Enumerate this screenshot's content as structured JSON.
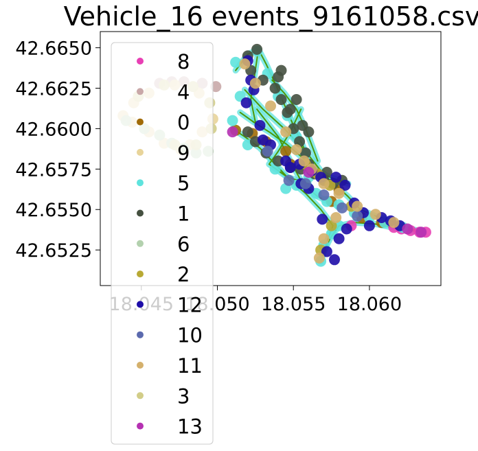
{
  "chart_data": {
    "type": "scatter",
    "title": "Vehicle_16 events_9161058.csv",
    "xlabel": "",
    "ylabel": "",
    "xlim": [
      18.0423,
      18.0647
    ],
    "ylim": [
      42.6503,
      42.666
    ],
    "x_ticks": [
      "18.045",
      "18.050",
      "18.055",
      "18.060"
    ],
    "x_tick_values": [
      18.045,
      18.05,
      18.055,
      18.06
    ],
    "y_ticks": [
      "42.6650",
      "42.6625",
      "42.6600",
      "42.6575",
      "42.6550",
      "42.6525"
    ],
    "y_tick_values": [
      42.665,
      42.6625,
      42.66,
      42.6575,
      42.655,
      42.6525
    ],
    "grid": false,
    "legend_position": "upper-left",
    "route_color": "#4c9a0a",
    "series": [
      {
        "name": "8",
        "color": "#e83fb4",
        "points": [
          [
            18.0621,
            42.6538
          ],
          [
            18.0627,
            42.6537
          ],
          [
            18.0633,
            42.6536
          ],
          [
            18.0637,
            42.6536
          ],
          [
            18.0616,
            42.6539
          ],
          [
            18.0588,
            42.654
          ]
        ]
      },
      {
        "name": "4",
        "color": "#c9a8a8",
        "points": [
          [
            18.0462,
            42.6628
          ],
          [
            18.047,
            42.6629
          ],
          [
            18.0478,
            42.6629
          ],
          [
            18.049,
            42.6628
          ],
          [
            18.0499,
            42.6626
          ]
        ]
      },
      {
        "name": "0",
        "color": "#a06a06",
        "points": [
          [
            18.0545,
            42.6586
          ],
          [
            18.0548,
            42.6578
          ],
          [
            18.0532,
            42.6592
          ],
          [
            18.0575,
            42.6555
          ],
          [
            18.0595,
            42.6545
          ],
          [
            18.0608,
            42.6542
          ],
          [
            18.058,
            42.6562
          ],
          [
            18.0523,
            42.6597
          ],
          [
            18.0512,
            42.6599
          ]
        ]
      },
      {
        "name": "9",
        "color": "#e8d49a",
        "points": [
          [
            18.0438,
            42.6608
          ],
          [
            18.0445,
            42.6616
          ],
          [
            18.0455,
            42.6622
          ],
          [
            18.0472,
            42.6627
          ],
          [
            18.0488,
            42.6622
          ],
          [
            18.0497,
            42.6606
          ],
          [
            18.049,
            42.6598
          ],
          [
            18.0482,
            42.659
          ],
          [
            18.0476,
            42.6587
          ],
          [
            18.0465,
            42.6591
          ],
          [
            18.0455,
            42.6598
          ],
          [
            18.0444,
            42.6604
          ]
        ]
      },
      {
        "name": "5",
        "color": "#5ee3dd",
        "points": [
          [
            18.0512,
            42.6641
          ],
          [
            18.0526,
            42.6648
          ],
          [
            18.0533,
            42.6634
          ],
          [
            18.054,
            42.662
          ],
          [
            18.0546,
            42.6608
          ],
          [
            18.0552,
            42.6595
          ],
          [
            18.0558,
            42.6585
          ],
          [
            18.056,
            42.657
          ],
          [
            18.0552,
            42.6565
          ],
          [
            18.0565,
            42.656
          ],
          [
            18.0572,
            42.6555
          ],
          [
            18.058,
            42.6553
          ],
          [
            18.059,
            42.6548
          ],
          [
            18.06,
            42.6545
          ],
          [
            18.061,
            42.6542
          ],
          [
            18.0622,
            42.6539
          ],
          [
            18.058,
            42.654
          ],
          [
            18.057,
            42.6528
          ],
          [
            18.0568,
            42.6518
          ],
          [
            18.0575,
            42.6535
          ],
          [
            18.0545,
            42.6563
          ],
          [
            18.0538,
            42.6575
          ],
          [
            18.052,
            42.659
          ],
          [
            18.051,
            42.6605
          ],
          [
            18.0515,
            42.662
          ]
        ]
      },
      {
        "name": "1",
        "color": "#455040",
        "points": [
          [
            18.0526,
            42.6649
          ],
          [
            18.052,
            42.6645
          ],
          [
            18.0522,
            42.6636
          ],
          [
            18.053,
            42.663
          ],
          [
            18.0538,
            42.6625
          ],
          [
            18.0542,
            42.6618
          ],
          [
            18.0546,
            42.661
          ],
          [
            18.055,
            42.66
          ],
          [
            18.0554,
            42.6592
          ],
          [
            18.0558,
            42.6585
          ],
          [
            18.056,
            42.6578
          ],
          [
            18.0564,
            42.6572
          ],
          [
            18.057,
            42.6568
          ],
          [
            18.0576,
            42.6566
          ],
          [
            18.0582,
            42.6568
          ],
          [
            18.0532,
            42.6585
          ],
          [
            18.054,
            42.658
          ],
          [
            18.0548,
            42.6576
          ],
          [
            18.0555,
            42.6575
          ],
          [
            18.0562,
            42.6574
          ],
          [
            18.0572,
            42.6573
          ],
          [
            18.052,
            42.6598
          ],
          [
            18.0525,
            42.6592
          ],
          [
            18.0548,
            42.6612
          ],
          [
            18.0552,
            42.6618
          ],
          [
            18.0556,
            42.6602
          ],
          [
            18.056,
            42.6598
          ],
          [
            18.054,
            42.6632
          ],
          [
            18.0542,
            42.6636
          ]
        ]
      },
      {
        "name": "6",
        "color": "#b3d1ae",
        "points": [
          [
            18.044,
            42.6605
          ],
          [
            18.0452,
            42.66
          ],
          [
            18.0462,
            42.6596
          ],
          [
            18.047,
            42.6591
          ],
          [
            18.0478,
            42.6588
          ],
          [
            18.0486,
            42.6585
          ],
          [
            18.0494,
            42.6586
          ]
        ]
      },
      {
        "name": "2",
        "color": "#b8a934",
        "points": [
          [
            18.0558,
            42.6578
          ],
          [
            18.0566,
            42.6572
          ],
          [
            18.0574,
            42.6565
          ],
          [
            18.0588,
            42.6552
          ],
          [
            18.0575,
            42.654
          ],
          [
            18.0568,
            42.6525
          ]
        ]
      },
      {
        "name": "12",
        "color": "#1e0da8",
        "points": [
          [
            18.052,
            42.6642
          ],
          [
            18.0522,
            42.663
          ],
          [
            18.0524,
            42.6624
          ],
          [
            18.0519,
            42.6616
          ],
          [
            18.0528,
            42.6602
          ],
          [
            18.0535,
            42.659
          ],
          [
            18.0545,
            42.658
          ],
          [
            18.0554,
            42.6578
          ],
          [
            18.0562,
            42.6574
          ],
          [
            18.0555,
            42.6566
          ],
          [
            18.056,
            42.6563
          ],
          [
            18.0568,
            42.657
          ],
          [
            18.0578,
            42.657
          ],
          [
            18.0584,
            42.6565
          ],
          [
            18.059,
            42.6554
          ],
          [
            18.0596,
            42.6548
          ],
          [
            18.0608,
            42.6545
          ],
          [
            18.0614,
            42.6543
          ],
          [
            18.062,
            42.654
          ],
          [
            18.06,
            42.654
          ],
          [
            18.0585,
            42.6538
          ],
          [
            18.058,
            42.6532
          ],
          [
            18.0572,
            42.6524
          ],
          [
            18.0577,
            42.6519
          ],
          [
            18.0569,
            42.6544
          ],
          [
            18.0548,
            42.6576
          ],
          [
            18.053,
            42.6593
          ]
        ]
      },
      {
        "name": "10",
        "color": "#5b6aae",
        "points": [
          [
            18.0547,
            42.6568
          ],
          [
            18.0558,
            42.6566
          ],
          [
            18.057,
            42.6559
          ],
          [
            18.0582,
            42.6551
          ],
          [
            18.0592,
            42.6546
          ],
          [
            18.0533,
            42.6586
          ]
        ]
      },
      {
        "name": "11",
        "color": "#d4b06c",
        "points": [
          [
            18.0518,
            42.664
          ],
          [
            18.0525,
            42.6628
          ],
          [
            18.0535,
            42.6614
          ],
          [
            18.0545,
            42.6598
          ],
          [
            18.0552,
            42.6587
          ],
          [
            18.0557,
            42.658
          ],
          [
            18.0562,
            42.6575
          ],
          [
            18.057,
            42.6566
          ],
          [
            18.058,
            42.656
          ],
          [
            18.0592,
            42.6552
          ],
          [
            18.0604,
            42.6547
          ],
          [
            18.0616,
            42.6542
          ],
          [
            18.0578,
            42.6545
          ],
          [
            18.057,
            42.6532
          ],
          [
            18.0567,
            42.652
          ]
        ]
      },
      {
        "name": "3",
        "color": "#d2cd88",
        "points": [
          [
            18.0448,
            42.662
          ],
          [
            18.0465,
            42.6627
          ],
          [
            18.0484,
            42.6626
          ],
          [
            18.0495,
            42.6616
          ],
          [
            18.0496,
            42.66
          ],
          [
            18.0486,
            42.659
          ],
          [
            18.0472,
            42.659
          ]
        ]
      },
      {
        "name": "13",
        "color": "#b531b2",
        "points": [
          [
            18.0625,
            42.6538
          ],
          [
            18.0634,
            42.6536
          ],
          [
            18.051,
            42.6598
          ],
          [
            18.056,
            42.6573
          ]
        ]
      }
    ],
    "route": [
      [
        [
          18.0512,
          42.6636
        ],
        [
          18.052,
          42.6646
        ],
        [
          18.0527,
          42.6649
        ],
        [
          18.0532,
          42.664
        ],
        [
          18.0538,
          42.6628
        ],
        [
          18.0544,
          42.6615
        ],
        [
          18.055,
          42.6602
        ],
        [
          18.0556,
          42.659
        ],
        [
          18.0561,
          42.6578
        ],
        [
          18.0568,
          42.657
        ],
        [
          18.0578,
          42.6565
        ],
        [
          18.0586,
          42.6558
        ],
        [
          18.0594,
          42.655
        ],
        [
          18.0604,
          42.6546
        ],
        [
          18.0614,
          42.6543
        ],
        [
          18.0624,
          42.6539
        ],
        [
          18.0635,
          42.6536
        ]
      ],
      [
        [
          18.0635,
          42.6536
        ],
        [
          18.062,
          42.6538
        ],
        [
          18.0604,
          42.6541
        ],
        [
          18.059,
          42.6542
        ],
        [
          18.058,
          42.654
        ],
        [
          18.0574,
          42.6532
        ],
        [
          18.057,
          42.6524
        ],
        [
          18.0568,
          42.6518
        ]
      ],
      [
        [
          18.0568,
          42.6518
        ],
        [
          18.0572,
          42.653
        ],
        [
          18.0576,
          42.654
        ],
        [
          18.0568,
          42.655
        ],
        [
          18.0558,
          42.656
        ],
        [
          18.0548,
          42.6568
        ],
        [
          18.0538,
          42.6578
        ],
        [
          18.0528,
          42.6588
        ],
        [
          18.0518,
          42.6595
        ],
        [
          18.051,
          42.66
        ]
      ],
      [
        [
          18.0518,
          42.6624
        ],
        [
          18.053,
          42.6612
        ],
        [
          18.0544,
          42.66
        ],
        [
          18.0558,
          42.6586
        ],
        [
          18.0568,
          42.6574
        ],
        [
          18.0578,
          42.6564
        ]
      ],
      [
        [
          18.0526,
          42.6612
        ],
        [
          18.054,
          42.6595
        ],
        [
          18.0548,
          42.658
        ],
        [
          18.0556,
          42.6566
        ],
        [
          18.0566,
          42.6558
        ],
        [
          18.058,
          42.6552
        ]
      ],
      [
        [
          18.0536,
          42.663
        ],
        [
          18.0544,
          42.6622
        ],
        [
          18.0552,
          42.6612
        ],
        [
          18.0558,
          42.66
        ],
        [
          18.0562,
          42.659
        ],
        [
          18.0566,
          42.658
        ]
      ],
      [
        [
          18.0515,
          42.661
        ],
        [
          18.0524,
          42.6604
        ],
        [
          18.0534,
          42.6598
        ],
        [
          18.0546,
          42.659
        ],
        [
          18.0556,
          42.6582
        ],
        [
          18.0566,
          42.6574
        ],
        [
          18.0574,
          42.657
        ],
        [
          18.0586,
          42.6566
        ]
      ],
      [
        [
          18.0527,
          42.6649
        ],
        [
          18.0524,
          42.663
        ],
        [
          18.0522,
          42.6618
        ],
        [
          18.0525,
          42.6604
        ]
      ],
      [
        [
          18.0555,
          42.6612
        ],
        [
          18.0548,
          42.6598
        ],
        [
          18.054,
          42.6586
        ],
        [
          18.0534,
          42.6578
        ],
        [
          18.0546,
          42.657
        ],
        [
          18.056,
          42.6566
        ]
      ]
    ]
  }
}
